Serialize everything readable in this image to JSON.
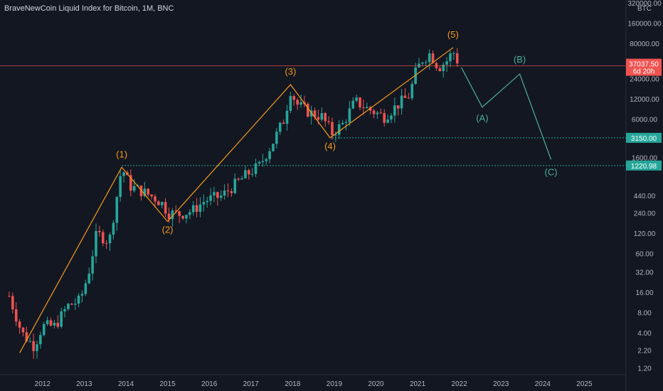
{
  "window": {
    "title": "BraveNewCoin Liquid Index for Bitcoin, 1M, BNC"
  },
  "colors": {
    "background": "#131722",
    "up": "#26a69a",
    "down": "#ef5350",
    "impulse": "#f59b1c",
    "correction": "#4caf9a",
    "level": "#26a69a",
    "price_line": "#ef5350"
  },
  "chart_data": {
    "type": "candlestick",
    "title": "BraveNewCoin Liquid Index for Bitcoin, 1M, BNC",
    "currency": "BTC",
    "scale": "log",
    "ylim": [
      0.95,
      320000
    ],
    "xlim": [
      2011.15,
      2026.0
    ],
    "x_ticks": [
      2012,
      2013,
      2014,
      2015,
      2016,
      2017,
      2018,
      2019,
      2020,
      2021,
      2022,
      2023,
      2024,
      2025
    ],
    "x_tick_labels": [
      "2012",
      "2013",
      "2014",
      "2015",
      "2016",
      "2017",
      "2018",
      "2019",
      "2020",
      "2021",
      "2022",
      "2023",
      "2024",
      "2025"
    ],
    "y_ticks": [
      320000,
      160000,
      80000,
      40000,
      24000,
      12000,
      6000,
      3150,
      1600,
      1220.98,
      880,
      440,
      240,
      120,
      60,
      32,
      16,
      8,
      4,
      2.2,
      1.2
    ],
    "y_tick_labels": [
      "320000.00",
      "160000.00",
      "80000.00",
      "",
      "24000.00",
      "12000.00",
      "6000.00",
      "",
      "1600.00",
      "",
      "",
      "440.00",
      "240.00",
      "120.00",
      "60.00",
      "32.00",
      "16.00",
      "8.00",
      "4.00",
      "2.20",
      "1.20"
    ],
    "current_price": {
      "value": 37037.5,
      "label": "37037.50",
      "countdown": "6d 20h"
    },
    "levels": [
      {
        "value": 3150.0,
        "label": "3150.00"
      },
      {
        "value": 1220.98,
        "label": "1220.98"
      }
    ],
    "candles_log_path": [
      [
        2011.2,
        14
      ],
      [
        2011.5,
        4
      ],
      [
        2011.8,
        2.5
      ],
      [
        2012.0,
        5
      ],
      [
        2012.3,
        5
      ],
      [
        2012.6,
        10
      ],
      [
        2012.9,
        12
      ],
      [
        2013.1,
        30
      ],
      [
        2013.3,
        120
      ],
      [
        2013.6,
        90
      ],
      [
        2013.9,
        1150
      ],
      [
        2014.1,
        600
      ],
      [
        2014.4,
        500
      ],
      [
        2014.7,
        400
      ],
      [
        2014.9,
        320
      ],
      [
        2015.0,
        240
      ],
      [
        2015.3,
        230
      ],
      [
        2015.6,
        260
      ],
      [
        2015.9,
        370
      ],
      [
        2016.3,
        430
      ],
      [
        2016.6,
        620
      ],
      [
        2016.9,
        900
      ],
      [
        2017.2,
        1200
      ],
      [
        2017.5,
        2500
      ],
      [
        2017.8,
        6000
      ],
      [
        2017.95,
        16000
      ],
      [
        2018.1,
        10000
      ],
      [
        2018.4,
        7500
      ],
      [
        2018.7,
        6500
      ],
      [
        2018.95,
        3700
      ],
      [
        2019.2,
        5000
      ],
      [
        2019.5,
        11000
      ],
      [
        2019.8,
        8500
      ],
      [
        2020.2,
        6500
      ],
      [
        2020.5,
        9500
      ],
      [
        2020.8,
        13500
      ],
      [
        2020.95,
        29000
      ],
      [
        2021.1,
        45000
      ],
      [
        2021.3,
        57000
      ],
      [
        2021.5,
        35000
      ],
      [
        2021.7,
        44000
      ],
      [
        2021.85,
        61000
      ],
      [
        2022.0,
        38000
      ]
    ],
    "impulse_waves": [
      {
        "label": "(1)",
        "x": 2013.9,
        "y": 1150
      },
      {
        "label": "(2)",
        "x": 2015.0,
        "y": 180
      },
      {
        "label": "(3)",
        "x": 2017.95,
        "y": 19500
      },
      {
        "label": "(4)",
        "x": 2018.9,
        "y": 3150
      },
      {
        "label": "(5)",
        "x": 2021.85,
        "y": 69000
      }
    ],
    "impulse_start": {
      "x": 2011.45,
      "y": 2.0
    },
    "correction_waves": [
      {
        "label": "(A)",
        "x": 2022.55,
        "y": 9000
      },
      {
        "label": "(B)",
        "x": 2023.45,
        "y": 28000
      },
      {
        "label": "(C)",
        "x": 2024.2,
        "y": 1500
      }
    ],
    "correction_start": {
      "x": 2022.05,
      "y": 35000
    }
  }
}
